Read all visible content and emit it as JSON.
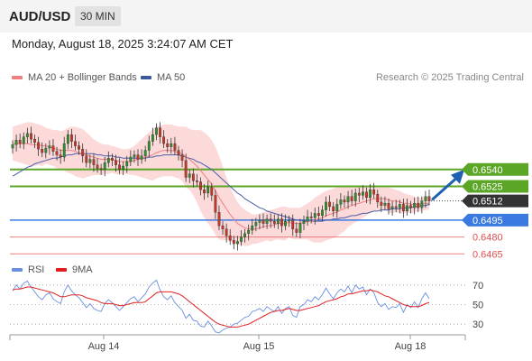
{
  "header": {
    "pair": "AUD/USD",
    "timeframe": "30 MIN"
  },
  "datetime": "Monday, August 18, 2025 3:24:07 AM CET",
  "legend": {
    "ma20_bb": "MA 20 + Bollinger Bands",
    "ma50": "MA 50",
    "rsi": "RSI",
    "rsi_ma": "9MA"
  },
  "credit": "Research © 2025 Trading Central",
  "colors": {
    "ma20": "#f08080",
    "ma50": "#4a5fa8",
    "bb_fill": "#fbd4d4",
    "resistance": "#5ba626",
    "support": "#3a7ae0",
    "target_red": "#e05050",
    "candle_up": "#2f8f2f",
    "candle_down": "#c0392b",
    "rsi": "#6a8ee0",
    "rsi_ma": "#e02020",
    "arrow": "#2060b0",
    "price_tag": "#333333"
  },
  "chart_data": [
    {
      "type": "candlestick",
      "title": "AUD/USD 30 MIN",
      "ylim": [
        0.6458,
        0.6612
      ],
      "x_tick_labels": [
        "Aug 14",
        "Aug 15",
        "Aug 18"
      ],
      "last_price": 0.6512,
      "levels": [
        {
          "value": 0.654,
          "label": "0.6540",
          "kind": "resistance"
        },
        {
          "value": 0.6525,
          "label": "0.6525",
          "kind": "resistance"
        },
        {
          "value": 0.6512,
          "label": "0.6512",
          "kind": "last"
        },
        {
          "value": 0.6495,
          "label": "0.6495",
          "kind": "pivot"
        },
        {
          "value": 0.648,
          "label": "0.6480",
          "kind": "support"
        },
        {
          "value": 0.6465,
          "label": "0.6465",
          "kind": "support"
        }
      ],
      "series": [
        {
          "name": "Close",
          "values": [
            0.6562,
            0.6566,
            0.6563,
            0.6569,
            0.6572,
            0.6567,
            0.6564,
            0.6558,
            0.6555,
            0.6559,
            0.6561,
            0.6556,
            0.6553,
            0.6551,
            0.6563,
            0.6571,
            0.6565,
            0.6561,
            0.6558,
            0.6552,
            0.6546,
            0.6549,
            0.6544,
            0.6541,
            0.654,
            0.6546,
            0.655,
            0.6548,
            0.6544,
            0.654,
            0.6543,
            0.6547,
            0.6551,
            0.6553,
            0.6549,
            0.6552,
            0.6557,
            0.6565,
            0.6571,
            0.6577,
            0.6569,
            0.6563,
            0.656,
            0.6563,
            0.6557,
            0.6553,
            0.6548,
            0.6533,
            0.6536,
            0.653,
            0.6529,
            0.6522,
            0.6519,
            0.6524,
            0.6517,
            0.6502,
            0.649,
            0.6487,
            0.6481,
            0.6477,
            0.6474,
            0.6476,
            0.648,
            0.6483,
            0.6486,
            0.649,
            0.6493,
            0.6495,
            0.6492,
            0.6496,
            0.6494,
            0.6492,
            0.6496,
            0.649,
            0.6494,
            0.6495,
            0.6487,
            0.6484,
            0.6492,
            0.6494,
            0.6498,
            0.6497,
            0.6501,
            0.6499,
            0.6504,
            0.6511,
            0.6507,
            0.6503,
            0.6509,
            0.6513,
            0.6511,
            0.6516,
            0.6512,
            0.6519,
            0.6517,
            0.652,
            0.6515,
            0.6522,
            0.6518,
            0.6511,
            0.6508,
            0.651,
            0.6505,
            0.6507,
            0.6506,
            0.6509,
            0.6503,
            0.6508,
            0.6506,
            0.651,
            0.6506,
            0.6512,
            0.6516,
            0.6512
          ]
        },
        {
          "name": "MA 20",
          "values": [
            0.6563,
            0.6563,
            0.6563,
            0.6563,
            0.6563,
            0.6562,
            0.6562,
            0.6562,
            0.6561,
            0.6561,
            0.656,
            0.6559,
            0.6558,
            0.6557,
            0.6557,
            0.6557,
            0.6557,
            0.6556,
            0.6555,
            0.6554,
            0.6553,
            0.6552,
            0.6551,
            0.655,
            0.6549,
            0.6549,
            0.6549,
            0.6549,
            0.6548,
            0.6547,
            0.6547,
            0.6547,
            0.6547,
            0.6548,
            0.6549,
            0.655,
            0.6551,
            0.6552,
            0.6553,
            0.6555,
            0.6556,
            0.6557,
            0.6557,
            0.6557,
            0.6556,
            0.6555,
            0.6554,
            0.6551,
            0.6549,
            0.6546,
            0.6543,
            0.6539,
            0.6535,
            0.6531,
            0.6527,
            0.6521,
            0.6515,
            0.651,
            0.6505,
            0.65,
            0.6496,
            0.6492,
            0.649,
            0.6488,
            0.6487,
            0.6487,
            0.6487,
            0.6488,
            0.6489,
            0.649,
            0.649,
            0.6491,
            0.6492,
            0.6492,
            0.6492,
            0.6493,
            0.6492,
            0.6492,
            0.6492,
            0.6493,
            0.6494,
            0.6494,
            0.6495,
            0.6496,
            0.6497,
            0.6499,
            0.65,
            0.6501,
            0.6502,
            0.6504,
            0.6505,
            0.6507,
            0.6508,
            0.6509,
            0.651,
            0.6511,
            0.6512,
            0.6513,
            0.6514,
            0.6514,
            0.6514,
            0.6514,
            0.6513,
            0.6512,
            0.6512,
            0.6511,
            0.651,
            0.651,
            0.6509,
            0.6509,
            0.6509,
            0.6509,
            0.651,
            0.651
          ]
        },
        {
          "name": "MA 50",
          "values": [
            0.6534,
            0.6536,
            0.6538,
            0.654,
            0.6542,
            0.6543,
            0.6545,
            0.6546,
            0.6547,
            0.6548,
            0.6549,
            0.655,
            0.655,
            0.6551,
            0.6552,
            0.6553,
            0.6553,
            0.6554,
            0.6554,
            0.6554,
            0.6554,
            0.6554,
            0.6554,
            0.6553,
            0.6553,
            0.6552,
            0.6552,
            0.6552,
            0.6551,
            0.6551,
            0.655,
            0.655,
            0.655,
            0.655,
            0.655,
            0.655,
            0.655,
            0.6551,
            0.6551,
            0.6552,
            0.6552,
            0.6553,
            0.6553,
            0.6553,
            0.6553,
            0.6553,
            0.6552,
            0.6551,
            0.655,
            0.6549,
            0.6547,
            0.6546,
            0.6544,
            0.6542,
            0.654,
            0.6537,
            0.6534,
            0.6531,
            0.6528,
            0.6525,
            0.6522,
            0.6519,
            0.6517,
            0.6514,
            0.6512,
            0.651,
            0.6508,
            0.6506,
            0.6505,
            0.6503,
            0.6502,
            0.6501,
            0.65,
            0.6499,
            0.6498,
            0.6497,
            0.6496,
            0.6495,
            0.6495,
            0.6494,
            0.6494,
            0.6494,
            0.6494,
            0.6494,
            0.6494,
            0.6495,
            0.6495,
            0.6496,
            0.6496,
            0.6497,
            0.6497,
            0.6498,
            0.6499,
            0.6499,
            0.65,
            0.6501,
            0.6501,
            0.6502,
            0.6503,
            0.6503,
            0.6504,
            0.6504,
            0.6504,
            0.6505,
            0.6505,
            0.6505,
            0.6506,
            0.6506,
            0.6506,
            0.6507,
            0.6507,
            0.6508,
            0.6508,
            0.6509
          ]
        },
        {
          "name": "BB Upper",
          "values": [
            0.6578,
            0.6579,
            0.658,
            0.6581,
            0.6582,
            0.6582,
            0.6581,
            0.658,
            0.6579,
            0.6577,
            0.6576,
            0.6575,
            0.6575,
            0.6574,
            0.6575,
            0.6577,
            0.6578,
            0.6578,
            0.6577,
            0.6576,
            0.6573,
            0.657,
            0.6567,
            0.6565,
            0.6563,
            0.6562,
            0.6562,
            0.6561,
            0.656,
            0.6559,
            0.6558,
            0.6558,
            0.6559,
            0.6561,
            0.6564,
            0.6567,
            0.657,
            0.6573,
            0.6576,
            0.6578,
            0.6579,
            0.658,
            0.658,
            0.658,
            0.6579,
            0.6578,
            0.6578,
            0.6578,
            0.6576,
            0.6575,
            0.6575,
            0.6575,
            0.6573,
            0.657,
            0.6566,
            0.656,
            0.6552,
            0.6543,
            0.6533,
            0.6524,
            0.6517,
            0.6511,
            0.6507,
            0.6504,
            0.6502,
            0.65,
            0.65,
            0.6501,
            0.6502,
            0.6503,
            0.6504,
            0.6505,
            0.6506,
            0.6507,
            0.6507,
            0.6506,
            0.6506,
            0.6506,
            0.6506,
            0.6508,
            0.651,
            0.6512,
            0.6515,
            0.6517,
            0.6519,
            0.6521,
            0.6522,
            0.6523,
            0.6524,
            0.6525,
            0.6525,
            0.6525,
            0.6525,
            0.6525,
            0.6525,
            0.6525,
            0.6525,
            0.6525,
            0.6525,
            0.6524,
            0.6524,
            0.6524,
            0.6524,
            0.6523,
            0.6522,
            0.6521,
            0.6519,
            0.6518,
            0.6517,
            0.6516,
            0.6515,
            0.6515,
            0.6516,
            0.6516
          ]
        },
        {
          "name": "BB Lower",
          "values": [
            0.6548,
            0.6547,
            0.6546,
            0.6545,
            0.6544,
            0.6542,
            0.6543,
            0.6544,
            0.6543,
            0.6545,
            0.6544,
            0.6543,
            0.6541,
            0.654,
            0.6539,
            0.6537,
            0.6536,
            0.6534,
            0.6533,
            0.6532,
            0.6533,
            0.6534,
            0.6535,
            0.6535,
            0.6535,
            0.6536,
            0.6536,
            0.6537,
            0.6536,
            0.6535,
            0.6536,
            0.6536,
            0.6535,
            0.6535,
            0.6534,
            0.6533,
            0.6532,
            0.6531,
            0.653,
            0.6532,
            0.6533,
            0.6534,
            0.6534,
            0.6534,
            0.6533,
            0.6532,
            0.653,
            0.6524,
            0.6522,
            0.6517,
            0.6511,
            0.6503,
            0.6497,
            0.6492,
            0.6488,
            0.6482,
            0.6478,
            0.6477,
            0.6477,
            0.6476,
            0.6475,
            0.6473,
            0.6473,
            0.6472,
            0.6472,
            0.6474,
            0.6474,
            0.6475,
            0.6476,
            0.6477,
            0.6476,
            0.6477,
            0.6478,
            0.6477,
            0.6477,
            0.648,
            0.6478,
            0.6478,
            0.6478,
            0.6478,
            0.6478,
            0.6476,
            0.6475,
            0.6475,
            0.6475,
            0.6477,
            0.6478,
            0.6479,
            0.648,
            0.6483,
            0.6485,
            0.6489,
            0.6491,
            0.6493,
            0.6495,
            0.6497,
            0.6499,
            0.6501,
            0.6503,
            0.6504,
            0.6504,
            0.6504,
            0.6502,
            0.6501,
            0.6502,
            0.6501,
            0.6501,
            0.6502,
            0.6501,
            0.6502,
            0.6503,
            0.6503,
            0.6504,
            0.6504
          ]
        }
      ]
    },
    {
      "type": "line",
      "title": "RSI",
      "ylim": [
        20,
        80
      ],
      "y_ticks": [
        30,
        50,
        70
      ],
      "series": [
        {
          "name": "RSI",
          "values": [
            64,
            70,
            66,
            72,
            74,
            68,
            63,
            58,
            55,
            60,
            62,
            56,
            53,
            51,
            63,
            70,
            64,
            60,
            57,
            52,
            47,
            51,
            46,
            44,
            43,
            51,
            55,
            52,
            48,
            44,
            48,
            52,
            56,
            58,
            53,
            57,
            61,
            68,
            72,
            75,
            65,
            58,
            55,
            59,
            52,
            48,
            44,
            36,
            40,
            34,
            33,
            28,
            27,
            33,
            28,
            22,
            21,
            24,
            26,
            27,
            30,
            31,
            34,
            37,
            38,
            43,
            44,
            46,
            43,
            48,
            45,
            43,
            48,
            41,
            46,
            48,
            39,
            37,
            48,
            50,
            55,
            53,
            58,
            55,
            60,
            67,
            61,
            56,
            62,
            66,
            63,
            69,
            62,
            70,
            66,
            68,
            60,
            66,
            62,
            52,
            48,
            51,
            45,
            48,
            47,
            51,
            42,
            50,
            47,
            53,
            47,
            56,
            62,
            56
          ]
        },
        {
          "name": "9MA",
          "values": [
            65,
            66,
            66,
            67,
            68,
            68,
            67,
            66,
            65,
            64,
            63,
            62,
            60,
            58,
            58,
            59,
            60,
            60,
            60,
            59,
            57,
            56,
            55,
            54,
            52,
            51,
            51,
            51,
            50,
            49,
            49,
            50,
            51,
            52,
            52,
            52,
            53,
            56,
            59,
            62,
            63,
            63,
            63,
            63,
            62,
            61,
            59,
            56,
            53,
            50,
            47,
            44,
            41,
            38,
            35,
            32,
            30,
            29,
            28,
            27,
            27,
            27,
            28,
            29,
            30,
            32,
            34,
            36,
            38,
            40,
            42,
            43,
            44,
            44,
            45,
            46,
            45,
            44,
            44,
            45,
            46,
            47,
            48,
            49,
            51,
            53,
            54,
            55,
            56,
            58,
            59,
            61,
            61,
            62,
            63,
            64,
            64,
            65,
            64,
            63,
            61,
            59,
            58,
            56,
            54,
            52,
            50,
            49,
            48,
            48,
            48,
            49,
            51,
            52
          ]
        }
      ]
    }
  ]
}
